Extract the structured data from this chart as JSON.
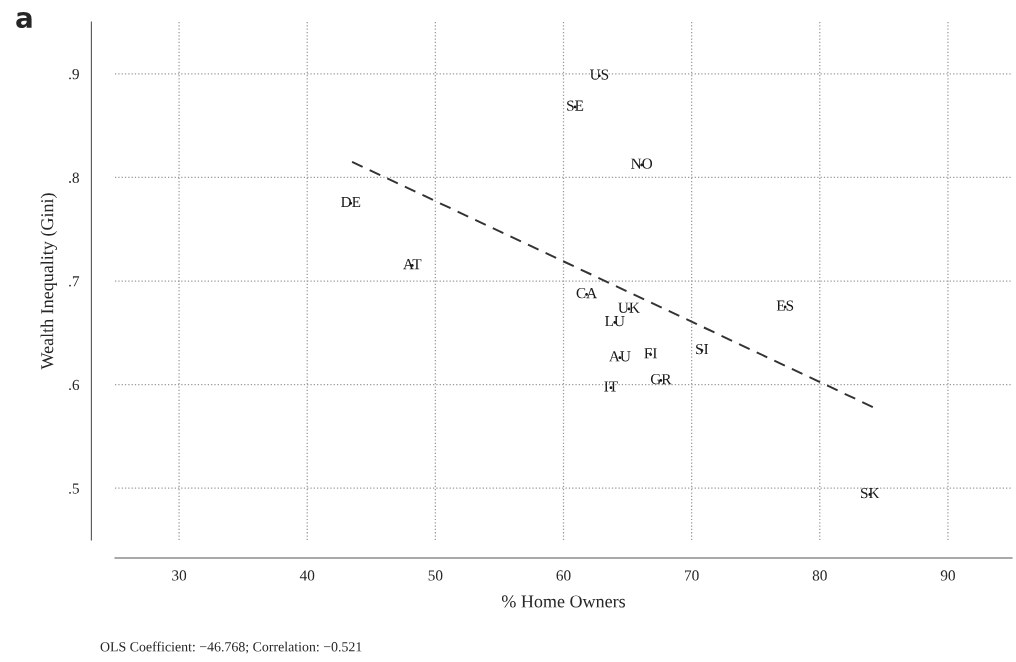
{
  "chart_data": {
    "type": "scatter",
    "title": "a",
    "xlabel": "% Home Owners",
    "ylabel": "Wealth Inequality (Gini)",
    "annotations": [
      "OLS Coefficient: −46.768; Correlation: −0.521"
    ],
    "series": [
      {
        "color": "#1a1a1a",
        "marker": "none",
        "x": [
          62.8,
          60.9,
          66.1,
          43.4,
          48.2,
          61.8,
          65.1,
          64.0,
          64.4,
          66.8,
          70.8,
          67.6,
          63.7,
          77.3,
          83.9
        ],
        "values": [
          0.898,
          0.868,
          0.812,
          0.775,
          0.715,
          0.687,
          0.673,
          0.66,
          0.626,
          0.629,
          0.633,
          0.604,
          0.597,
          0.675,
          0.494
        ],
        "value_labels": [
          "US",
          "SE",
          "NO",
          "DE",
          "AT",
          "CA",
          "UK",
          "LU",
          "AU",
          "FI",
          "SI",
          "GR",
          "IT",
          "ES",
          "SK"
        ]
      },
      {
        "type": "line",
        "color": "#333333",
        "line_style": "dashed",
        "x": [
          43.5,
          84.2
        ],
        "values": [
          0.815,
          0.578
        ]
      }
    ],
    "xlim": [
      25,
      95
    ],
    "ylim": [
      0.45,
      0.95
    ],
    "xticks": [
      30,
      40,
      50,
      60,
      70,
      80,
      90
    ],
    "yticks": [
      {
        "value": 0.5,
        "label": ".5"
      },
      {
        "value": 0.6,
        "label": ".6"
      },
      {
        "value": 0.7,
        "label": ".7"
      },
      {
        "value": 0.8,
        "label": ".8"
      },
      {
        "value": 0.9,
        "label": ".9"
      }
    ],
    "grid": true
  }
}
